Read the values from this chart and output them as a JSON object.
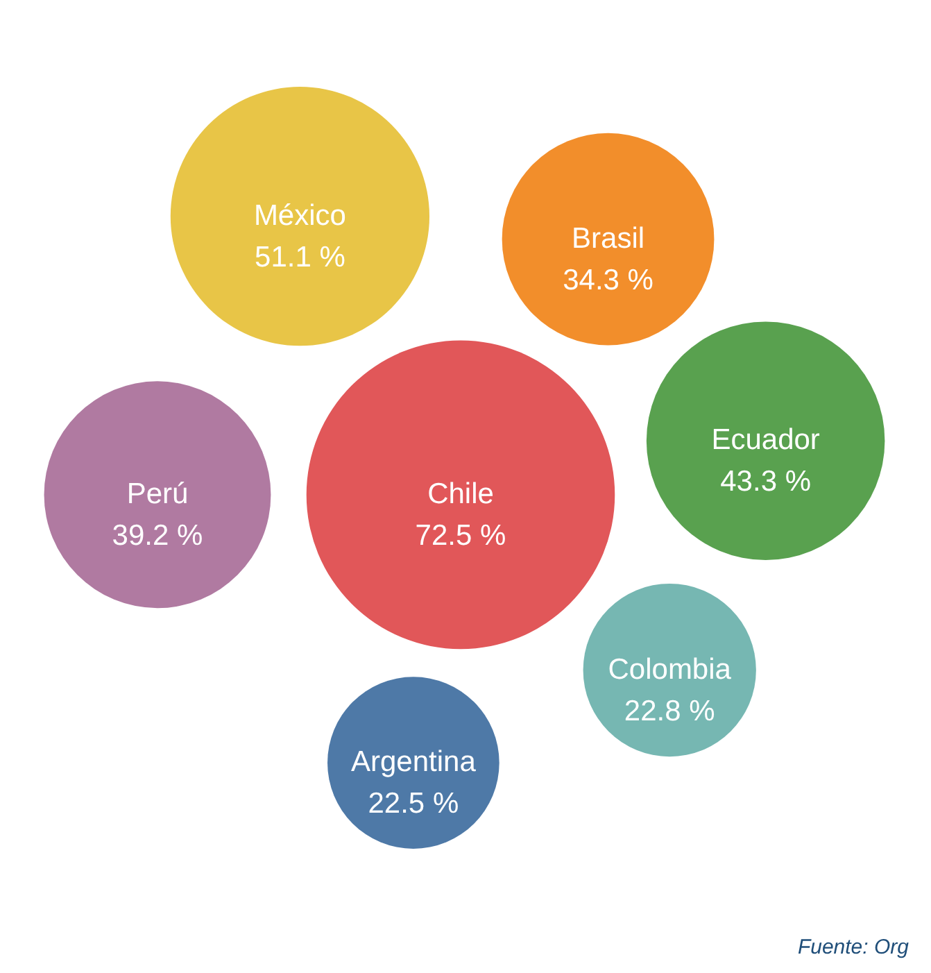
{
  "chart_data": {
    "type": "other",
    "categories": [
      "México",
      "Perú",
      "Ecuador",
      "Argentina",
      "Brasil",
      "Colombia",
      "Chile"
    ],
    "values": [
      51.1,
      39.2,
      43.3,
      22.5,
      34.3,
      22.8,
      72.5
    ],
    "value_labels": [
      "51.1 %",
      "39.2 %",
      "43.3 %",
      "22.5 %",
      "34.3 %",
      "22.8 %",
      "72.5 %"
    ],
    "colors": [
      "#e8c547",
      "#b07aa1",
      "#59a14f",
      "#4e79a7",
      "#f28e2b",
      "#76b7b2",
      "#e15759"
    ],
    "annotations": [
      "Fuente: Org"
    ]
  }
}
